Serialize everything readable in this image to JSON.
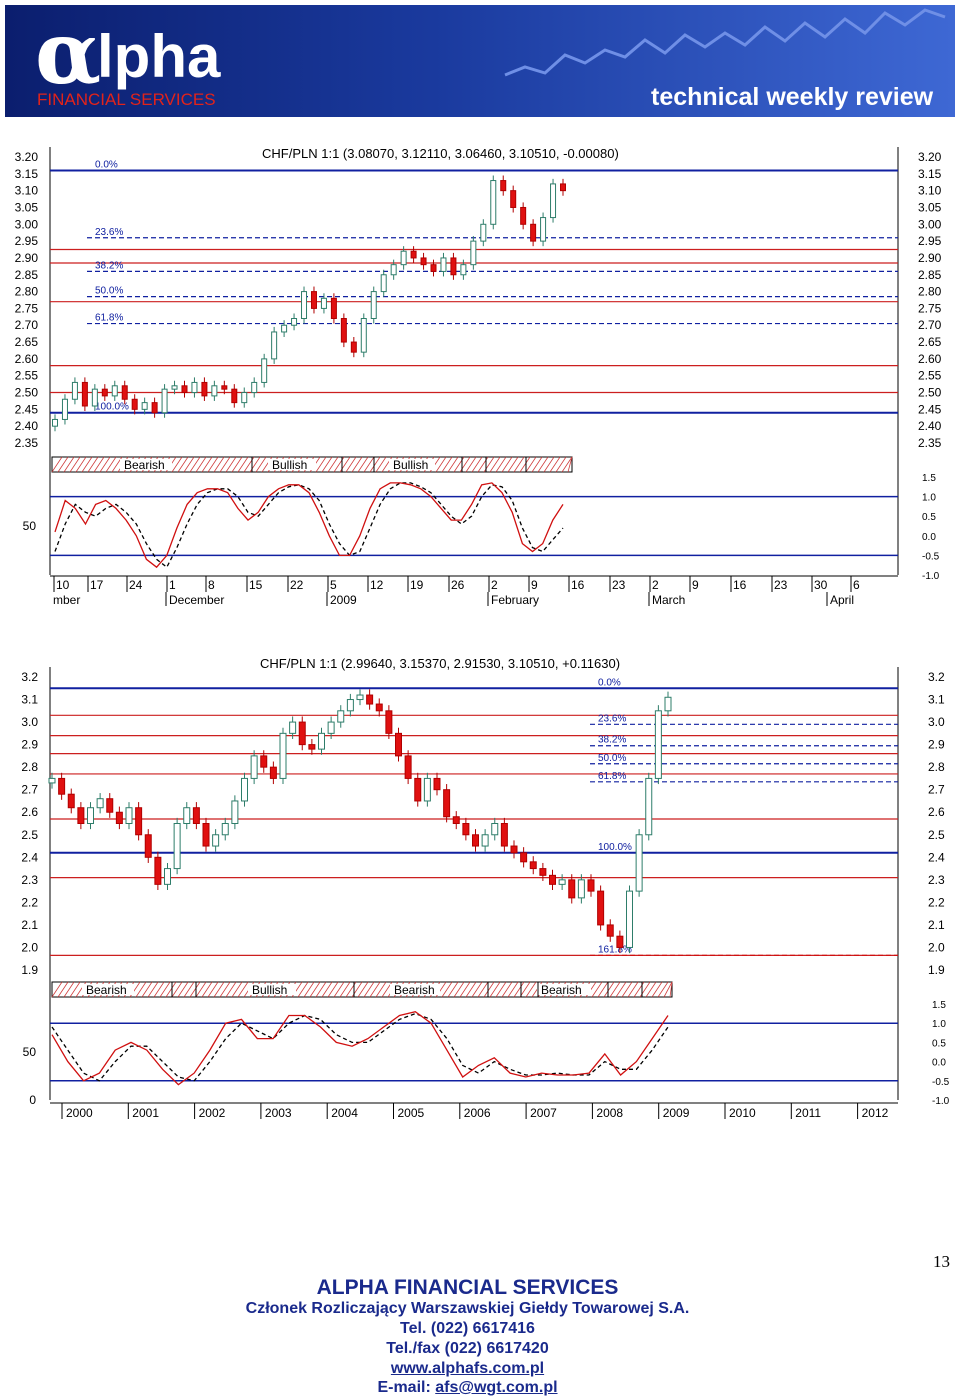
{
  "banner": {
    "logo_text": "lpha",
    "logo_sub": "FINANCIAL SERVICES",
    "tagline": "technical weekly review",
    "colors": {
      "bg_dark": "#0d1f6b",
      "bg_light": "#3c5fc8",
      "accent_red": "#e2231a"
    }
  },
  "chart_data": [
    {
      "type": "candlestick",
      "title": "CHF/PLN 1:1 (3.08070, 3.12110, 3.06460, 3.10510, -0.00080)",
      "ylim": [
        2.35,
        3.2
      ],
      "y_ticks": [
        "3.20",
        "3.15",
        "3.10",
        "3.05",
        "3.00",
        "2.95",
        "2.90",
        "2.85",
        "2.80",
        "2.75",
        "2.70",
        "2.65",
        "2.60",
        "2.55",
        "2.50",
        "2.45",
        "2.40",
        "2.35"
      ],
      "fib_levels": [
        {
          "label": "0.0%",
          "value": 3.16,
          "color": "#1020a0",
          "style": "solid"
        },
        {
          "label": "23.6%",
          "value": 2.96,
          "color": "#1020a0",
          "style": "dashed"
        },
        {
          "label": "38.2%",
          "value": 2.86,
          "color": "#1020a0",
          "style": "dashed"
        },
        {
          "label": "50.0%",
          "value": 2.785,
          "color": "#1020a0",
          "style": "dashed"
        },
        {
          "label": "61.8%",
          "value": 2.705,
          "color": "#1020a0",
          "style": "dashed"
        },
        {
          "label": "100.0%",
          "value": 2.44,
          "color": "#1020a0",
          "style": "solid"
        }
      ],
      "red_lines": [
        2.925,
        2.885,
        2.77,
        2.58,
        2.5
      ],
      "closes": [
        2.42,
        2.48,
        2.53,
        2.46,
        2.51,
        2.49,
        2.52,
        2.48,
        2.45,
        2.47,
        2.44,
        2.51,
        2.52,
        2.5,
        2.53,
        2.49,
        2.52,
        2.51,
        2.47,
        2.5,
        2.53,
        2.6,
        2.68,
        2.7,
        2.72,
        2.8,
        2.75,
        2.78,
        2.72,
        2.65,
        2.62,
        2.72,
        2.8,
        2.85,
        2.88,
        2.92,
        2.9,
        2.88,
        2.86,
        2.9,
        2.85,
        2.88,
        2.95,
        3.0,
        3.13,
        3.1,
        3.05,
        3.0,
        2.95,
        3.02,
        3.12,
        3.1
      ],
      "stoch_ylim": [
        -1.0,
        1.5
      ],
      "stoch_ticks_right": [
        "1.5",
        "1.0",
        "0.5",
        "0.0",
        "-0.5",
        "-1.0"
      ],
      "stoch_tick_left": "50",
      "stoch_fast": [
        0.1,
        0.9,
        0.7,
        0.3,
        0.8,
        0.9,
        0.7,
        0.4,
        0.0,
        -0.6,
        -0.8,
        -0.5,
        0.2,
        0.8,
        1.1,
        1.2,
        1.2,
        1.1,
        0.7,
        0.4,
        0.6,
        1.0,
        1.2,
        1.3,
        1.3,
        1.1,
        0.6,
        0.0,
        -0.5,
        -0.5,
        0.0,
        0.7,
        1.2,
        1.35,
        1.35,
        1.3,
        1.2,
        1.0,
        0.7,
        0.4,
        0.4,
        0.8,
        1.3,
        1.35,
        1.1,
        0.6,
        -0.2,
        -0.4,
        -0.2,
        0.4,
        0.8
      ],
      "stoch_slow": [
        -0.4,
        0.3,
        0.8,
        0.6,
        0.5,
        0.7,
        0.8,
        0.6,
        0.3,
        -0.2,
        -0.6,
        -0.8,
        -0.3,
        0.3,
        0.8,
        1.1,
        1.2,
        1.2,
        1.0,
        0.6,
        0.5,
        0.8,
        1.1,
        1.25,
        1.3,
        1.2,
        0.9,
        0.3,
        -0.2,
        -0.5,
        -0.4,
        0.2,
        0.8,
        1.2,
        1.35,
        1.35,
        1.25,
        1.1,
        0.8,
        0.5,
        0.3,
        0.5,
        1.0,
        1.3,
        1.25,
        0.9,
        0.2,
        -0.3,
        -0.4,
        -0.1,
        0.2
      ],
      "signals": [
        {
          "label": "Bearish"
        },
        {
          "label": "Bullish"
        },
        {
          "label": "Bullish"
        }
      ],
      "x_days": [
        "10",
        "17",
        "24",
        "1",
        "8",
        "15",
        "22",
        "5",
        "12",
        "19",
        "26",
        "2",
        "9",
        "16",
        "23",
        "2",
        "9",
        "16",
        "23",
        "30",
        "6"
      ],
      "x_months": [
        "mber",
        "December",
        "2009",
        "February",
        "March",
        "April"
      ]
    },
    {
      "type": "candlestick",
      "title": "CHF/PLN 1:1 (2.99640, 3.15370, 2.91530, 3.10510, +0.11630)",
      "ylim": [
        1.9,
        3.2
      ],
      "y_ticks": [
        "3.2",
        "3.1",
        "3.0",
        "2.9",
        "2.8",
        "2.7",
        "2.6",
        "2.5",
        "2.4",
        "2.3",
        "2.2",
        "2.1",
        "2.0",
        "1.9"
      ],
      "fib_levels": [
        {
          "label": "0.0%",
          "value": 3.15,
          "color": "#1020a0",
          "style": "solid"
        },
        {
          "label": "23.6%",
          "value": 2.99,
          "color": "#1020a0",
          "style": "dashed"
        },
        {
          "label": "38.2%",
          "value": 2.895,
          "color": "#1020a0",
          "style": "dashed"
        },
        {
          "label": "50.0%",
          "value": 2.815,
          "color": "#1020a0",
          "style": "dashed"
        },
        {
          "label": "61.8%",
          "value": 2.735,
          "color": "#1020a0",
          "style": "dashed"
        },
        {
          "label": "100.0%",
          "value": 2.42,
          "color": "#1020a0",
          "style": "solid"
        },
        {
          "label": "161.8%",
          "value": 1.965,
          "color": "#d01010",
          "style": "dashed"
        }
      ],
      "red_lines": [
        3.03,
        2.94,
        2.86,
        2.77,
        2.57,
        2.31,
        1.965
      ],
      "closes": [
        2.75,
        2.68,
        2.62,
        2.55,
        2.62,
        2.66,
        2.6,
        2.55,
        2.62,
        2.5,
        2.4,
        2.28,
        2.35,
        2.55,
        2.62,
        2.55,
        2.45,
        2.5,
        2.55,
        2.65,
        2.75,
        2.85,
        2.8,
        2.75,
        2.95,
        3.0,
        2.9,
        2.88,
        2.95,
        3.0,
        3.05,
        3.1,
        3.12,
        3.08,
        3.05,
        2.95,
        2.85,
        2.75,
        2.65,
        2.75,
        2.7,
        2.58,
        2.55,
        2.5,
        2.45,
        2.5,
        2.55,
        2.45,
        2.42,
        2.38,
        2.35,
        2.32,
        2.28,
        2.3,
        2.22,
        2.3,
        2.25,
        2.1,
        2.05,
        2.0,
        2.25,
        2.5,
        2.75,
        3.05,
        3.11
      ],
      "stoch_ylim": [
        -1.0,
        1.5
      ],
      "stoch_ticks_right": [
        "1.5",
        "1.0",
        "0.5",
        "0.0",
        "-0.5",
        "-1.0"
      ],
      "stoch_ticks_left": [
        "50",
        "0"
      ],
      "stoch_fast": [
        0.7,
        0.0,
        -0.5,
        -0.3,
        0.3,
        0.5,
        0.3,
        -0.2,
        -0.6,
        -0.3,
        0.3,
        1.0,
        1.1,
        0.6,
        0.6,
        1.2,
        1.2,
        0.9,
        0.5,
        0.4,
        0.6,
        0.9,
        1.2,
        1.3,
        1.0,
        0.3,
        -0.4,
        -0.1,
        0.1,
        -0.3,
        -0.4,
        -0.3,
        -0.35,
        -0.35,
        -0.3,
        0.2,
        -0.35,
        0.0,
        0.6,
        1.2
      ],
      "stoch_slow": [
        0.9,
        0.3,
        -0.3,
        -0.5,
        0.0,
        0.4,
        0.4,
        0.0,
        -0.4,
        -0.5,
        0.0,
        0.6,
        1.0,
        0.8,
        0.6,
        1.0,
        1.2,
        1.1,
        0.7,
        0.5,
        0.5,
        0.8,
        1.1,
        1.25,
        1.1,
        0.6,
        -0.1,
        -0.3,
        0.0,
        -0.2,
        -0.35,
        -0.35,
        -0.3,
        -0.35,
        -0.35,
        0.0,
        -0.2,
        -0.2,
        0.3,
        0.9
      ],
      "signals": [
        {
          "label": "Bearish"
        },
        {
          "label": "Bullish"
        },
        {
          "label": "Bearish"
        },
        {
          "label": "Bearish"
        }
      ],
      "x_years": [
        "2000",
        "2001",
        "2002",
        "2003",
        "2004",
        "2005",
        "2006",
        "2007",
        "2008",
        "2009",
        "2010",
        "2011",
        "2012"
      ]
    }
  ],
  "page": {
    "number": "13"
  },
  "footer": {
    "company": "ALPHA FINANCIAL SERVICES",
    "member": "Członek Rozliczający Warszawskiej Giełdy Towarowej S.A.",
    "tel": "Tel. (022) 6617416",
    "fax": "Tel./fax (022) 6617420",
    "www": "www.alphafs.com.pl",
    "email_prefix": "E-mail: ",
    "email": "afs@wgt.com.pl"
  }
}
